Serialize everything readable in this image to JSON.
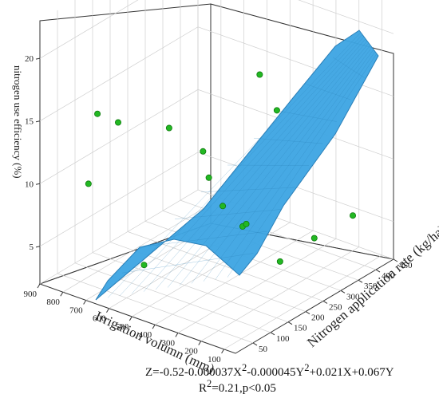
{
  "chart_data": {
    "type": "surface3d",
    "x_axis": {
      "label": "Irrigation volumn (mm)",
      "ticks": [
        900,
        800,
        700,
        600,
        500,
        400,
        300,
        200,
        100
      ],
      "range": [
        50,
        900
      ]
    },
    "y_axis": {
      "label": "Nitrogen application rate (kg/ha)",
      "ticks": [
        50,
        100,
        150,
        200,
        250,
        300,
        350,
        400,
        450
      ],
      "range": [
        0,
        450
      ]
    },
    "z_axis": {
      "label": "nitrogen use efficiency (%)",
      "ticks": [
        5,
        10,
        15,
        20
      ],
      "range": [
        2,
        23
      ]
    },
    "grid": true,
    "surface": {
      "color": "#3ea6e3",
      "mesh_color": "#2a7fb8"
    },
    "points": [
      {
        "x": 600,
        "y": 100,
        "z": 3.8
      },
      {
        "x": 750,
        "y": 40,
        "z": 10.3
      },
      {
        "x": 650,
        "y": 0,
        "z": 17.2
      },
      {
        "x": 560,
        "y": 0,
        "z": 17.1
      },
      {
        "x": 430,
        "y": 60,
        "z": 16.5
      },
      {
        "x": 420,
        "y": 150,
        "z": 13.2
      },
      {
        "x": 410,
        "y": 160,
        "z": 11.0
      },
      {
        "x": 380,
        "y": 180,
        "z": 8.6
      },
      {
        "x": 370,
        "y": 230,
        "z": 6.2
      },
      {
        "x": 400,
        "y": 260,
        "z": 5.7
      },
      {
        "x": 250,
        "y": 200,
        "z": 19.6
      },
      {
        "x": 160,
        "y": 190,
        "z": 17.5
      },
      {
        "x": 150,
        "y": 290,
        "z": 5.7
      },
      {
        "x": 120,
        "y": 380,
        "z": 6.2
      },
      {
        "x": 360,
        "y": 330,
        "z": 1.8
      }
    ],
    "point_color": "#22b822"
  },
  "equation": {
    "line1_main": "Z=-0.52-0.000037X",
    "sup1": "2",
    "mid": "-0.000045Y",
    "sup2": "2",
    "end": "+0.021X+0.067Y",
    "r": "R",
    "r_sup": "2",
    "r_rest": "=0.21,p<0.05"
  }
}
